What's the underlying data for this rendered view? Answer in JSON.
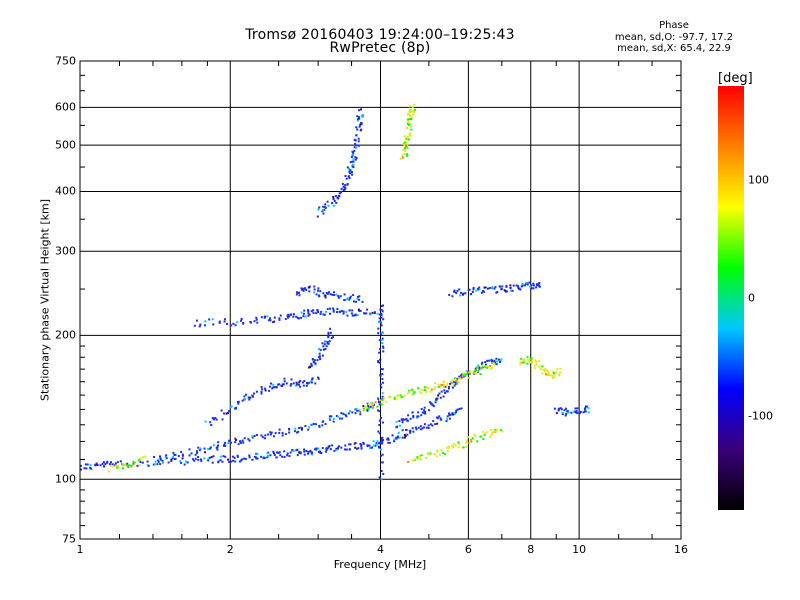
{
  "chart_data": {
    "type": "scatter",
    "title": "Tromsø 20160403 19:24:00–19:25:43",
    "subtitle": "RwPretec (8p)",
    "xlabel": "Frequency [MHz]",
    "ylabel": "Stationary phase Virtual Height [km]",
    "x_scale": "log",
    "y_scale": "log",
    "xlim": [
      1,
      16
    ],
    "ylim": [
      75,
      750
    ],
    "x_ticks": [
      1,
      2,
      4,
      6,
      8,
      10,
      16
    ],
    "y_ticks": [
      75,
      100,
      200,
      300,
      400,
      500,
      600,
      750
    ],
    "grid": true,
    "phase_stats": {
      "title": "Phase",
      "line1": "mean, sd,O: -97.7, 17.2",
      "line2": "mean, sd,X: 65.4, 22.9"
    },
    "colorbar": {
      "label": "[deg]",
      "range": [
        -180,
        180
      ],
      "ticks": [
        100,
        0,
        -100
      ],
      "colors": [
        "#000000",
        "#3b007a",
        "#0000ff",
        "#00c8ff",
        "#00ff00",
        "#ffff00",
        "#ff8000",
        "#ff0000"
      ]
    },
    "o_mode_color": "#1a2fe6",
    "x_mode_color": "#e3e81a",
    "traces": [
      {
        "mode": "O",
        "points": [
          [
            1.0,
            106
          ],
          [
            1.1,
            107
          ],
          [
            1.2,
            108
          ],
          [
            1.4,
            108
          ],
          [
            1.6,
            109
          ],
          [
            1.8,
            110
          ],
          [
            2.0,
            110
          ],
          [
            2.2,
            111
          ],
          [
            2.4,
            112
          ],
          [
            2.6,
            113
          ],
          [
            2.8,
            114
          ],
          [
            3.0,
            115
          ],
          [
            3.2,
            116
          ],
          [
            3.5,
            117
          ],
          [
            3.8,
            118
          ],
          [
            4.0,
            119
          ],
          [
            4.3,
            122
          ],
          [
            4.6,
            126
          ],
          [
            5.0,
            130
          ],
          [
            5.5,
            135
          ],
          [
            5.8,
            140
          ]
        ]
      },
      {
        "mode": "O",
        "points": [
          [
            1.4,
            110
          ],
          [
            1.6,
            113
          ],
          [
            1.8,
            116
          ],
          [
            2.0,
            119
          ],
          [
            2.2,
            122
          ],
          [
            2.5,
            125
          ],
          [
            2.8,
            128
          ],
          [
            3.1,
            132
          ],
          [
            3.4,
            136
          ],
          [
            3.7,
            140
          ],
          [
            4.0,
            145
          ]
        ]
      },
      {
        "mode": "O",
        "points": [
          [
            1.8,
            130
          ],
          [
            2.0,
            140
          ],
          [
            2.2,
            150
          ],
          [
            2.4,
            156
          ],
          [
            2.6,
            160
          ],
          [
            2.8,
            158
          ],
          [
            3.0,
            162
          ]
        ]
      },
      {
        "mode": "O",
        "points": [
          [
            2.9,
            170
          ],
          [
            3.0,
            180
          ],
          [
            3.1,
            192
          ],
          [
            3.2,
            205
          ]
        ]
      },
      {
        "mode": "O",
        "points": [
          [
            1.7,
            212
          ],
          [
            2.0,
            213
          ],
          [
            2.3,
            215
          ],
          [
            2.6,
            218
          ],
          [
            2.8,
            222
          ],
          [
            3.0,
            224
          ],
          [
            3.3,
            224
          ],
          [
            3.6,
            223
          ],
          [
            3.9,
            224
          ]
        ]
      },
      {
        "mode": "O",
        "points": [
          [
            2.7,
            245
          ],
          [
            2.9,
            250
          ],
          [
            3.1,
            244
          ],
          [
            3.4,
            240
          ],
          [
            3.7,
            238
          ]
        ]
      },
      {
        "mode": "O",
        "points": [
          [
            3.0,
            360
          ],
          [
            3.2,
            380
          ],
          [
            3.35,
            400
          ],
          [
            3.45,
            430
          ],
          [
            3.52,
            460
          ],
          [
            3.58,
            500
          ],
          [
            3.62,
            550
          ],
          [
            3.65,
            590
          ]
        ]
      },
      {
        "mode": "O",
        "points": [
          [
            4.0,
            100
          ],
          [
            4.0,
            130
          ],
          [
            4.0,
            160
          ],
          [
            4.0,
            190
          ],
          [
            4.0,
            215
          ],
          [
            4.0,
            230
          ]
        ]
      },
      {
        "mode": "O",
        "points": [
          [
            4.3,
            130
          ],
          [
            4.6,
            135
          ],
          [
            4.9,
            140
          ],
          [
            5.2,
            148
          ],
          [
            5.5,
            156
          ],
          [
            5.8,
            163
          ],
          [
            6.2,
            170
          ],
          [
            6.6,
            175
          ],
          [
            7.0,
            178
          ]
        ]
      },
      {
        "mode": "O",
        "points": [
          [
            5.5,
            245
          ],
          [
            6.0,
            247
          ],
          [
            6.5,
            249
          ],
          [
            7.0,
            250
          ],
          [
            7.5,
            252
          ],
          [
            8.0,
            254
          ],
          [
            8.4,
            256
          ]
        ]
      },
      {
        "mode": "O",
        "points": [
          [
            9.0,
            140
          ],
          [
            9.5,
            138
          ],
          [
            10.0,
            139
          ],
          [
            10.5,
            140
          ]
        ]
      },
      {
        "mode": "X",
        "points": [
          [
            1.15,
            105
          ],
          [
            1.25,
            107
          ],
          [
            1.35,
            110
          ]
        ]
      },
      {
        "mode": "X",
        "points": [
          [
            3.6,
            140
          ],
          [
            4.0,
            145
          ],
          [
            4.4,
            150
          ],
          [
            4.8,
            153
          ],
          [
            5.2,
            157
          ],
          [
            5.6,
            160
          ],
          [
            6.0,
            165
          ],
          [
            6.4,
            170
          ],
          [
            6.8,
            174
          ]
        ]
      },
      {
        "mode": "X",
        "points": [
          [
            4.6,
            110
          ],
          [
            5.0,
            112
          ],
          [
            5.5,
            115
          ],
          [
            6.0,
            120
          ],
          [
            6.5,
            124
          ],
          [
            7.0,
            128
          ]
        ]
      },
      {
        "mode": "X",
        "points": [
          [
            4.45,
            470
          ],
          [
            4.5,
            500
          ],
          [
            4.55,
            540
          ],
          [
            4.6,
            580
          ],
          [
            4.65,
            600
          ]
        ]
      },
      {
        "mode": "X",
        "points": [
          [
            7.6,
            175
          ],
          [
            8.0,
            180
          ],
          [
            8.4,
            170
          ],
          [
            8.8,
            165
          ],
          [
            9.2,
            168
          ]
        ]
      }
    ]
  }
}
